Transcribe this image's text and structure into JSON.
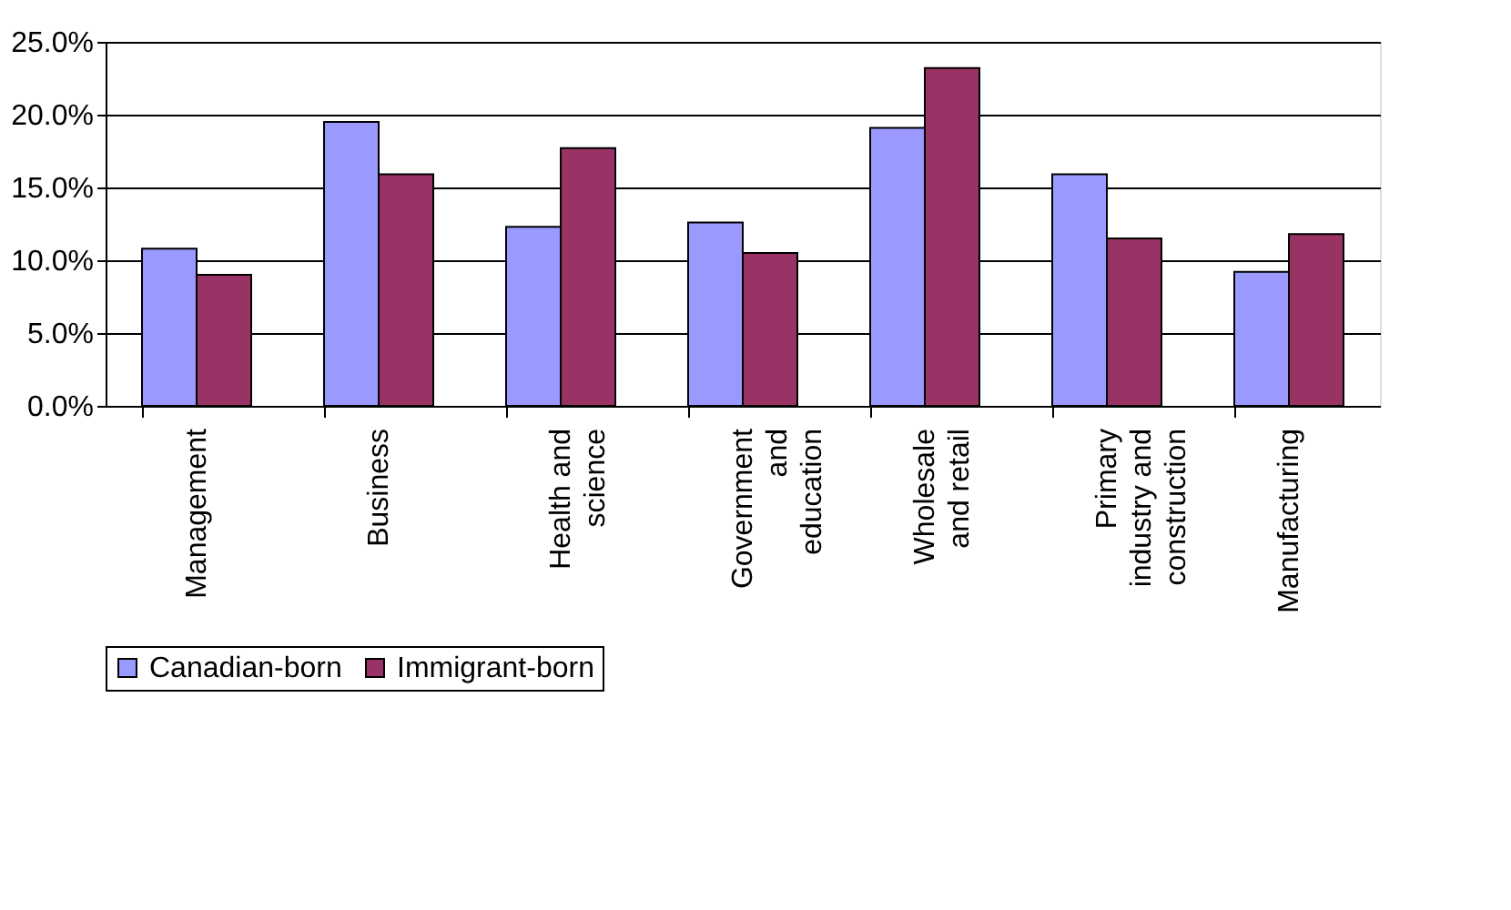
{
  "chart_data": {
    "type": "bar",
    "categories": [
      "Management",
      "Business",
      "Health and science",
      "Government and education",
      "Wholesale and retail",
      "Primary industry and construction",
      "Manufacturing"
    ],
    "series": [
      {
        "name": "Canadian-born",
        "color": "#9999ff",
        "values": [
          10.8,
          19.5,
          12.3,
          12.6,
          19.1,
          15.9,
          9.2
        ]
      },
      {
        "name": "Immigrant-born",
        "color": "#993366",
        "values": [
          9.0,
          15.9,
          17.7,
          10.5,
          23.2,
          11.5,
          11.8
        ]
      }
    ],
    "ylim": [
      0,
      25
    ],
    "yticks": [
      {
        "value": 0,
        "label": "0.0%"
      },
      {
        "value": 5,
        "label": "5.0%"
      },
      {
        "value": 10,
        "label": "10.0%"
      },
      {
        "value": 15,
        "label": "15.0%"
      },
      {
        "value": 20,
        "label": "20.0%"
      },
      {
        "value": 25,
        "label": "25.0%"
      }
    ],
    "grid": "y",
    "legend": "bottom"
  }
}
